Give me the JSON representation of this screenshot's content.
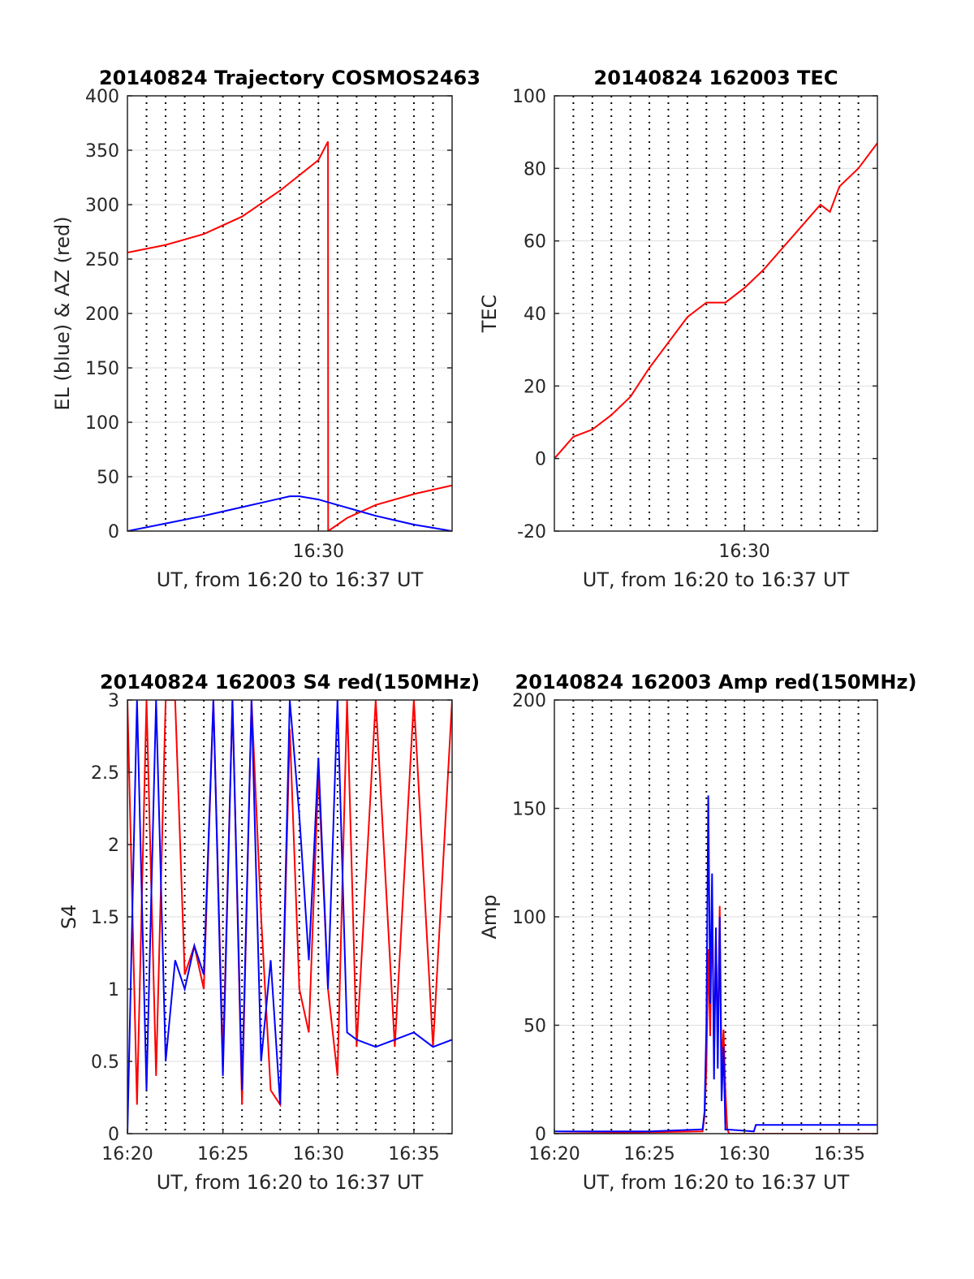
{
  "chart_data": [
    {
      "id": "trajectory",
      "type": "line",
      "title": "20140824 Trajectory COSMOS2463",
      "xlabel": "UT, from 16:20 to 16:37 UT",
      "ylabel": "EL (blue) & AZ (red)",
      "xlim": [
        0,
        17
      ],
      "ylim": [
        0,
        400
      ],
      "yticks": [
        0,
        50,
        100,
        150,
        200,
        250,
        300,
        350,
        400
      ],
      "xticks": [
        {
          "x": 10,
          "label": "16:30"
        }
      ],
      "grid": true,
      "series": [
        {
          "color": "#ff0000",
          "x": [
            0,
            2,
            4,
            6,
            8,
            10,
            10.5,
            10.51,
            11.5,
            13,
            15,
            17
          ],
          "y": [
            256,
            263,
            273,
            289,
            313,
            341,
            358,
            0,
            12,
            24,
            34,
            42
          ]
        },
        {
          "color": "#0000ff",
          "x": [
            0,
            2,
            4,
            6,
            7,
            8,
            8.5,
            9,
            10,
            11,
            12,
            13,
            14,
            15,
            16,
            17
          ],
          "y": [
            0,
            7,
            14,
            22,
            26,
            30,
            32,
            32,
            29,
            24,
            19,
            14,
            10,
            6,
            3,
            0
          ]
        }
      ]
    },
    {
      "id": "tec",
      "type": "line",
      "title": "20140824 162003 TEC",
      "xlabel": "UT, from 16:20 to 16:37 UT",
      "ylabel": "TEC",
      "xlim": [
        0,
        17
      ],
      "ylim": [
        -20,
        100
      ],
      "yticks": [
        -20,
        0,
        20,
        40,
        60,
        80,
        100
      ],
      "xticks": [
        {
          "x": 10,
          "label": "16:30"
        }
      ],
      "grid": true,
      "series": [
        {
          "color": "#ff0000",
          "x": [
            0,
            1,
            2,
            3,
            4,
            5,
            6,
            7,
            7.5,
            8,
            8.5,
            9,
            10,
            11,
            12,
            13,
            14,
            14.5,
            15,
            16,
            17
          ],
          "y": [
            0,
            6,
            8,
            12,
            17,
            25,
            32,
            39,
            41,
            43,
            43,
            43,
            47,
            52,
            58,
            64,
            70,
            68,
            75,
            80,
            87
          ]
        }
      ]
    },
    {
      "id": "s4",
      "type": "line",
      "title": "20140824 162003 S4 red(150MHz)",
      "xlabel": "UT, from 16:20 to 16:37 UT",
      "ylabel": "S4",
      "xlim": [
        0,
        17
      ],
      "ylim": [
        0,
        3
      ],
      "yticks": [
        0,
        0.5,
        1,
        1.5,
        2,
        2.5,
        3
      ],
      "xticks": [
        {
          "x": 0,
          "label": "16:20"
        },
        {
          "x": 5,
          "label": "16:25"
        },
        {
          "x": 10,
          "label": "16:30"
        },
        {
          "x": 15,
          "label": "16:35"
        }
      ],
      "grid": true,
      "series": [
        {
          "color": "#ff0000",
          "x": [
            0,
            0.5,
            1,
            1.5,
            2,
            2.5,
            3,
            3.5,
            4,
            4.5,
            5,
            5.5,
            6,
            6.5,
            7,
            7.5,
            8,
            8.5,
            9,
            9.5,
            10,
            10.5,
            11,
            11.5,
            12,
            13,
            14,
            15,
            16,
            17
          ],
          "y": [
            3,
            0.2,
            3,
            0.4,
            3,
            3,
            1.1,
            1.3,
            1.0,
            3,
            0.5,
            3,
            0.2,
            3,
            1.5,
            0.3,
            0.2,
            2.8,
            1.0,
            0.7,
            2.5,
            1.0,
            0.4,
            3,
            0.6,
            3,
            0.6,
            3,
            0.6,
            3
          ]
        },
        {
          "color": "#0000ff",
          "x": [
            0,
            0.5,
            1,
            1.5,
            2,
            2.5,
            3,
            3.5,
            4,
            4.5,
            5,
            5.5,
            6,
            6.5,
            7,
            7.5,
            8,
            8.5,
            9,
            9.5,
            10,
            10.5,
            11,
            11.5,
            12,
            13,
            14,
            15,
            16,
            17
          ],
          "y": [
            0,
            3,
            0.3,
            3,
            0.5,
            1.2,
            1.0,
            1.3,
            1.1,
            3,
            0.4,
            3,
            0.3,
            3,
            0.5,
            1.2,
            0.2,
            3,
            2.2,
            1.2,
            2.6,
            1.0,
            3,
            0.7,
            0.65,
            0.6,
            0.65,
            0.7,
            0.6,
            0.65
          ]
        }
      ]
    },
    {
      "id": "amp",
      "type": "line",
      "title": "20140824 162003 Amp red(150MHz)",
      "xlabel": "UT, from 16:20 to 16:37 UT",
      "ylabel": "Amp",
      "xlim": [
        0,
        17
      ],
      "ylim": [
        0,
        200
      ],
      "yticks": [
        0,
        50,
        100,
        150,
        200
      ],
      "xticks": [
        {
          "x": 0,
          "label": "16:20"
        },
        {
          "x": 5,
          "label": "16:25"
        },
        {
          "x": 10,
          "label": "16:30"
        },
        {
          "x": 15,
          "label": "16:35"
        }
      ],
      "grid": true,
      "series": [
        {
          "color": "#ff0000",
          "x": [
            0,
            7.8,
            7.9,
            8.0,
            8.1,
            8.2,
            8.3,
            8.4,
            8.5,
            8.6,
            8.7,
            8.8,
            8.9,
            9.0,
            9.1,
            9.2,
            17
          ],
          "y": [
            0,
            1,
            8,
            30,
            85,
            45,
            110,
            35,
            90,
            40,
            105,
            30,
            48,
            20,
            2,
            0,
            0
          ]
        },
        {
          "color": "#0000ff",
          "x": [
            0,
            5,
            7.8,
            7.9,
            8.0,
            8.1,
            8.2,
            8.3,
            8.4,
            8.5,
            8.6,
            8.7,
            8.8,
            8.9,
            9.0,
            10.5,
            10.6,
            12,
            14,
            17
          ],
          "y": [
            1,
            1,
            2,
            10,
            50,
            156,
            60,
            120,
            25,
            95,
            30,
            100,
            15,
            40,
            2,
            1,
            4,
            4,
            4,
            4
          ]
        }
      ]
    }
  ]
}
